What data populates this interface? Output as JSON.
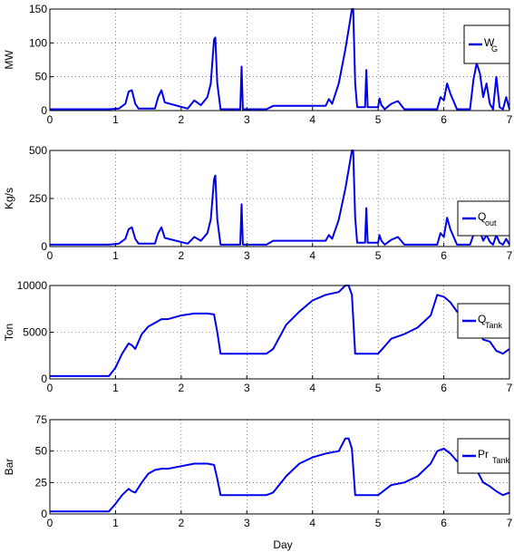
{
  "xlabel": "Day",
  "line_color": "#0000ee",
  "chart_data": [
    {
      "type": "line",
      "ylabel": "MW",
      "xlim": [
        0,
        7
      ],
      "ylim": [
        0,
        150
      ],
      "yticks": [
        0,
        50,
        100,
        150
      ],
      "xticks": [
        0,
        1,
        2,
        3,
        4,
        5,
        6,
        7
      ],
      "legend": {
        "main": "W",
        "sub": "G",
        "position": "top-right"
      },
      "series": [
        {
          "name": "W_G",
          "x": [
            0,
            0.9,
            1.05,
            1.15,
            1.2,
            1.25,
            1.3,
            1.35,
            1.6,
            1.65,
            1.7,
            1.75,
            2.1,
            2.2,
            2.3,
            2.4,
            2.45,
            2.5,
            2.52,
            2.55,
            2.6,
            2.9,
            2.92,
            2.94,
            2.96,
            3.0,
            3.3,
            3.4,
            4.2,
            4.25,
            4.3,
            4.4,
            4.5,
            4.55,
            4.6,
            4.62,
            4.65,
            4.68,
            4.8,
            4.82,
            4.84,
            5.0,
            5.02,
            5.05,
            5.1,
            5.2,
            5.3,
            5.4,
            5.9,
            5.95,
            6.0,
            6.05,
            6.1,
            6.2,
            6.4,
            6.45,
            6.5,
            6.55,
            6.6,
            6.65,
            6.7,
            6.75,
            6.8,
            6.85,
            6.9,
            6.95,
            7.0
          ],
          "y": [
            2,
            2,
            3,
            10,
            28,
            30,
            10,
            3,
            3,
            20,
            30,
            12,
            3,
            15,
            8,
            20,
            40,
            105,
            108,
            40,
            2,
            2,
            65,
            2,
            2,
            2,
            2,
            7,
            7,
            17,
            10,
            40,
            90,
            120,
            155,
            155,
            40,
            5,
            5,
            60,
            5,
            5,
            18,
            8,
            2,
            10,
            14,
            2,
            2,
            20,
            15,
            40,
            25,
            2,
            2,
            45,
            70,
            55,
            20,
            40,
            10,
            2,
            50,
            5,
            2,
            20,
            2
          ]
        }
      ]
    },
    {
      "type": "line",
      "ylabel": "Kg/s",
      "xlim": [
        0,
        7
      ],
      "ylim": [
        0,
        500
      ],
      "yticks": [
        0,
        250,
        500
      ],
      "xticks": [
        0,
        1,
        2,
        3,
        4,
        5,
        6,
        7
      ],
      "legend": {
        "main": "Q",
        "sub": "out",
        "position": "right"
      },
      "series": [
        {
          "name": "Q_out",
          "x": [
            0,
            0.9,
            1.05,
            1.15,
            1.2,
            1.25,
            1.3,
            1.35,
            1.6,
            1.65,
            1.7,
            1.75,
            2.1,
            2.2,
            2.3,
            2.4,
            2.45,
            2.5,
            2.52,
            2.55,
            2.6,
            2.9,
            2.92,
            2.94,
            2.96,
            3.0,
            3.3,
            3.4,
            4.2,
            4.25,
            4.3,
            4.4,
            4.5,
            4.55,
            4.6,
            4.62,
            4.65,
            4.68,
            4.8,
            4.82,
            4.84,
            5.0,
            5.02,
            5.05,
            5.1,
            5.2,
            5.3,
            5.4,
            5.9,
            5.95,
            6.0,
            6.05,
            6.1,
            6.2,
            6.4,
            6.45,
            6.5,
            6.55,
            6.6,
            6.65,
            6.7,
            6.75,
            6.8,
            6.85,
            6.9,
            6.95,
            7.0
          ],
          "y": [
            10,
            10,
            15,
            40,
            90,
            100,
            40,
            15,
            15,
            70,
            100,
            45,
            15,
            50,
            30,
            70,
            140,
            350,
            370,
            140,
            10,
            10,
            220,
            10,
            10,
            10,
            10,
            30,
            30,
            60,
            40,
            140,
            300,
            400,
            510,
            510,
            150,
            20,
            20,
            200,
            20,
            20,
            60,
            30,
            10,
            35,
            50,
            10,
            10,
            70,
            50,
            150,
            90,
            10,
            10,
            60,
            130,
            80,
            30,
            60,
            25,
            10,
            60,
            20,
            10,
            40,
            10
          ]
        }
      ]
    },
    {
      "type": "line",
      "ylabel": "Ton",
      "xlim": [
        0,
        7
      ],
      "ylim": [
        0,
        10000
      ],
      "yticks": [
        0,
        5000,
        10000
      ],
      "xticks": [
        0,
        1,
        2,
        3,
        4,
        5,
        6,
        7
      ],
      "legend": {
        "main": "Q",
        "sub": "Tank",
        "position": "right"
      },
      "series": [
        {
          "name": "Q_Tank",
          "x": [
            0,
            0.9,
            1.0,
            1.1,
            1.2,
            1.25,
            1.3,
            1.4,
            1.5,
            1.6,
            1.7,
            1.8,
            2.0,
            2.2,
            2.4,
            2.5,
            2.55,
            2.6,
            2.8,
            3.0,
            3.3,
            3.4,
            3.6,
            3.8,
            4.0,
            4.2,
            4.4,
            4.5,
            4.55,
            4.6,
            4.65,
            5.0,
            5.05,
            5.2,
            5.4,
            5.6,
            5.8,
            5.9,
            6.0,
            6.1,
            6.2,
            6.3,
            6.4,
            6.5,
            6.6,
            6.7,
            6.8,
            6.9,
            7.0
          ],
          "y": [
            300,
            300,
            1200,
            2700,
            3800,
            3600,
            3200,
            4800,
            5600,
            6000,
            6400,
            6400,
            6800,
            7000,
            7000,
            6900,
            5000,
            2700,
            2700,
            2700,
            2700,
            3200,
            5800,
            7200,
            8400,
            9000,
            9300,
            10100,
            10100,
            9000,
            2700,
            2700,
            3100,
            4300,
            4800,
            5500,
            6800,
            9000,
            8800,
            8200,
            7200,
            7500,
            7000,
            5500,
            4200,
            4000,
            3000,
            2700,
            3200
          ]
        }
      ]
    },
    {
      "type": "line",
      "ylabel": "Bar",
      "xlim": [
        0,
        7
      ],
      "ylim": [
        0,
        75
      ],
      "yticks": [
        0,
        25,
        50,
        75
      ],
      "xticks": [
        0,
        1,
        2,
        3,
        4,
        5,
        6,
        7
      ],
      "xtick_labels": [
        "0",
        "1",
        "2",
        "3",
        "4",
        "5",
        "6",
        "7"
      ],
      "legend": {
        "main": "Pr",
        "sub": "Tank",
        "position": "right"
      },
      "series": [
        {
          "name": "Pr_Tank",
          "x": [
            0,
            0.9,
            1.0,
            1.1,
            1.2,
            1.25,
            1.3,
            1.4,
            1.5,
            1.6,
            1.7,
            1.8,
            2.0,
            2.2,
            2.4,
            2.5,
            2.55,
            2.6,
            2.8,
            3.0,
            3.3,
            3.4,
            3.6,
            3.8,
            4.0,
            4.2,
            4.4,
            4.5,
            4.55,
            4.6,
            4.65,
            5.0,
            5.05,
            5.2,
            5.4,
            5.6,
            5.8,
            5.9,
            6.0,
            6.1,
            6.2,
            6.3,
            6.4,
            6.5,
            6.6,
            6.7,
            6.8,
            6.9,
            7.0
          ],
          "y": [
            2,
            2,
            8,
            15,
            20,
            18,
            17,
            25,
            32,
            35,
            36,
            36,
            38,
            40,
            40,
            39,
            28,
            15,
            15,
            15,
            15,
            17,
            30,
            40,
            45,
            48,
            50,
            60,
            60,
            52,
            15,
            15,
            17,
            23,
            25,
            30,
            40,
            50,
            52,
            48,
            42,
            44,
            42,
            35,
            25,
            22,
            18,
            15,
            17
          ]
        }
      ]
    }
  ]
}
